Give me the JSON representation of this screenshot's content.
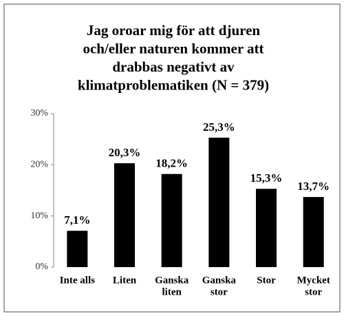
{
  "chart_data": {
    "type": "bar",
    "title_lines": [
      "Jag oroar mig för att djuren",
      "och/eller naturen kommer att",
      "drabbas negativt av",
      "klimatproblematiken (N = 379)"
    ],
    "categories": [
      [
        "Inte alls"
      ],
      [
        "Liten"
      ],
      [
        "Ganska",
        "liten"
      ],
      [
        "Ganska",
        "stor"
      ],
      [
        "Stor"
      ],
      [
        "Mycket",
        "stor"
      ]
    ],
    "values": [
      7.1,
      20.3,
      18.2,
      25.3,
      15.3,
      13.7
    ],
    "value_labels": [
      "7,1%",
      "20,3%",
      "18,2%",
      "25,3%",
      "15,3%",
      "13,7%"
    ],
    "color": "#000000",
    "ylim": [
      0,
      30
    ],
    "yticks": [
      {
        "value": 0,
        "label": "0%"
      },
      {
        "value": 10,
        "label": "10%"
      },
      {
        "value": 20,
        "label": "20%"
      },
      {
        "value": 30,
        "label": "30%"
      }
    ],
    "grid": false
  }
}
